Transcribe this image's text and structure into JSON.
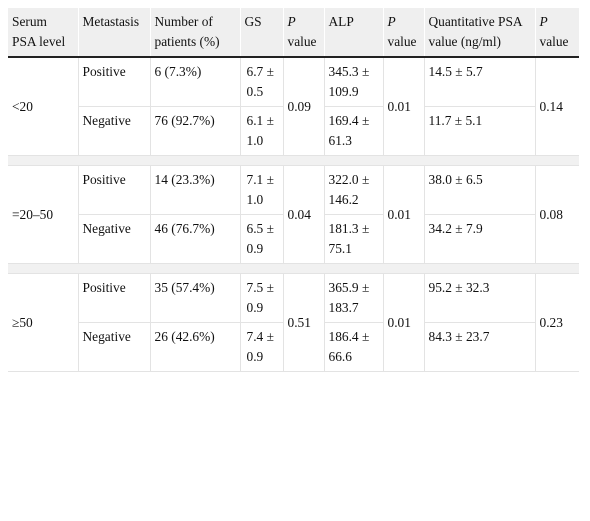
{
  "header": {
    "serum": "Serum PSA level",
    "metastasis": "Metastasis",
    "patients": "Number of patients (%)",
    "gs": "GS",
    "p1_italic": "P",
    "p1_rest": " value",
    "alp": "ALP",
    "p2_italic": "P",
    "p2_rest": " value",
    "qpsa": "Quantitative PSA value (ng/ml)",
    "p3_italic": "P",
    "p3_rest": " value"
  },
  "groups": [
    {
      "level": "<20",
      "p_gs": "0.09",
      "p_alp": "0.01",
      "p_psa": "0.14",
      "rows": [
        {
          "metastasis": "Positive",
          "patients": "6 (7.3%)",
          "gs": "6.7 ± 0.5",
          "alp": "345.3 ± 109.9",
          "psa": "14.5 ± 5.7"
        },
        {
          "metastasis": "Negative",
          "patients": "76 (92.7%)",
          "gs": "6.1 ± 1.0",
          "alp": "169.4 ± 61.3",
          "psa": "11.7 ± 5.1"
        }
      ]
    },
    {
      "level": "=20–50",
      "p_gs": "0.04",
      "p_alp": "0.01",
      "p_psa": "0.08",
      "rows": [
        {
          "metastasis": "Positive",
          "patients": "14 (23.3%)",
          "gs": "7.1 ± 1.0",
          "alp": "322.0 ± 146.2",
          "psa": "38.0 ± 6.5"
        },
        {
          "metastasis": "Negative",
          "patients": "46 (76.7%)",
          "gs": "6.5 ± 0.9",
          "alp": "181.3 ± 75.1",
          "psa": "34.2 ± 7.9"
        }
      ]
    },
    {
      "level": "≥50",
      "p_gs": "0.51",
      "p_alp": "0.01",
      "p_psa": "0.23",
      "rows": [
        {
          "metastasis": "Positive",
          "patients": "35 (57.4%)",
          "gs": "7.5 ± 0.9",
          "alp": "365.9 ± 183.7",
          "psa": "95.2 ± 32.3"
        },
        {
          "metastasis": "Negative",
          "patients": "26 (42.6%)",
          "gs": "7.4 ± 0.9",
          "alp": "186.4 ± 66.6",
          "psa": "84.3 ± 23.7"
        }
      ]
    }
  ]
}
